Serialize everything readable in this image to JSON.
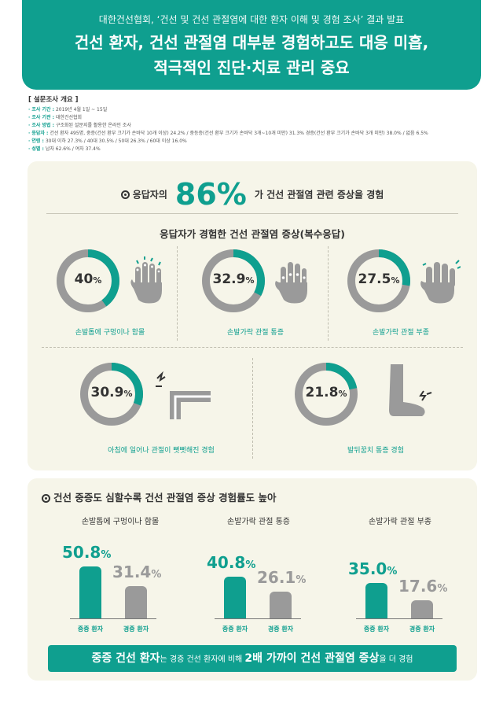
{
  "header": {
    "subtitle": "대한건선협회, ‘건선 및 건선 관절염에 대한 환자 이해 및 경험 조사’ 결과 발표",
    "title_line1": "건선 환자, 건선 관절염 대부분 경험하고도 대응 미흡,",
    "title_line2": "적극적인 진단·치료 관리 중요"
  },
  "survey": {
    "title": "[ 설문조사 개요 ]",
    "rows": [
      {
        "key": "· 조사 기간 :",
        "val": " 2019년 4월 1일 ~ 15일"
      },
      {
        "key": "· 조사 기관 :",
        "val": " 대한건선협회"
      },
      {
        "key": "· 조사 방법 :",
        "val": " 구조화된 설문지를 활용한 온라인 조사"
      },
      {
        "key": "· 응답자 :",
        "val": " 건선 환자 495명, 중증(건선 환부 크기가 손바닥 10개 이상) 24.2% / 중등증(건선 환부 크기가 손바닥 3개~10개 미만) 31.3% 경증(건선 환부 크기가 손바닥 3개 미만) 38.0% / 없음 6.5%"
      },
      {
        "key": "· 연령 :",
        "val": " 30대 이하 27.3% / 40대 30.5% / 50대 26.3% / 60대 이상 16.0%"
      },
      {
        "key": "· 성별 :",
        "val": " 남자 62.6% / 여자 37.4%"
      }
    ]
  },
  "section1": {
    "headline_pre": "응답자의",
    "headline_big": "86%",
    "headline_post": "가 건선 관절염 관련 증상을 경험",
    "subtitle": "응답자가 경험한 건선 관절염 증상(복수응답)",
    "pct_unit": "%"
  },
  "section2": {
    "title": "건선 중증도 심할수록 건선 관절염 증상 경험률도 높아",
    "bar_label_severe": "중증 환자",
    "bar_label_mild": "경증 환자",
    "pct_unit": "%",
    "banner": {
      "b1": "중증 건선 환자",
      "t1": "는 경증 건선 환자에 비해 ",
      "b2": "2배 가까이 건선 관절염 증상",
      "t2": "을 더 경험"
    }
  },
  "colors": {
    "teal": "#0f9f8f",
    "gray": "#9a9a9a",
    "panel": "#f6f5e9"
  },
  "chart_data": [
    {
      "type": "pie",
      "categories": [
        "손발톱에 구멍이나 함몰",
        "손발가락 관절 통증",
        "손발가락 관절 부종",
        "아침에 일어나 관절이 뻣뻣해진 경험",
        "발뒤꿈치 통증 경험"
      ],
      "values": [
        40,
        32.9,
        27.5,
        30.9,
        21.8
      ],
      "labels": [
        "40",
        "32.9",
        "27.5",
        "30.9",
        "21.8"
      ],
      "title": "응답자가 경험한 건선 관절염 증상(복수응답)"
    },
    {
      "type": "bar",
      "categories": [
        "손발톱에 구멍이나 함몰",
        "손발가락 관절 통증",
        "손발가락 관절 부종"
      ],
      "series": [
        {
          "name": "중증 환자",
          "values": [
            50.8,
            40.8,
            35.0
          ],
          "labels": [
            "50.8",
            "40.8",
            "35.0"
          ]
        },
        {
          "name": "경증 환자",
          "values": [
            31.4,
            26.1,
            17.6
          ],
          "labels": [
            "31.4",
            "26.1",
            "17.6"
          ]
        }
      ],
      "title": "건선 중증도 심할수록 건선 관절염 증상 경험률도 높아"
    }
  ]
}
